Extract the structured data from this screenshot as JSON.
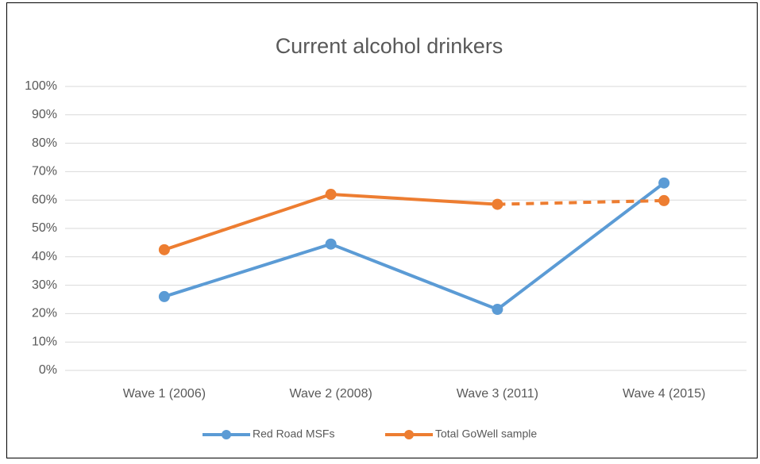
{
  "chart_data": {
    "type": "line",
    "title": "Current alcohol drinkers",
    "categories": [
      "Wave 1 (2006)",
      "Wave 2 (2008)",
      "Wave 3 (2011)",
      "Wave 4 (2015)"
    ],
    "series": [
      {
        "name": "Red Road MSFs",
        "color": "#5b9bd5",
        "values": [
          26,
          44.5,
          21.5,
          66
        ]
      },
      {
        "name": "Total GoWell sample",
        "color": "#ed7d31",
        "values": [
          42.5,
          62,
          58.5,
          59.8
        ],
        "dashed_segments": [
          2
        ]
      }
    ],
    "ylim": [
      0,
      100
    ],
    "yticks": [
      {
        "value": 0,
        "label": "0%"
      },
      {
        "value": 10,
        "label": "10%"
      },
      {
        "value": 20,
        "label": "20%"
      },
      {
        "value": 30,
        "label": "30%"
      },
      {
        "value": 40,
        "label": "40%"
      },
      {
        "value": 50,
        "label": "50%"
      },
      {
        "value": 60,
        "label": "60%"
      },
      {
        "value": 70,
        "label": "70%"
      },
      {
        "value": 80,
        "label": "80%"
      },
      {
        "value": 90,
        "label": "90%"
      },
      {
        "value": 100,
        "label": "100%"
      }
    ],
    "grid": true,
    "legend": "bottom"
  }
}
